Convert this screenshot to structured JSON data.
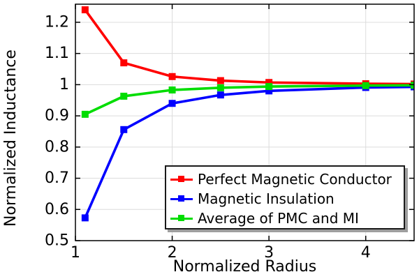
{
  "chart_data": {
    "type": "line",
    "title": "",
    "xlabel": "Normalized Radius",
    "ylabel": "Normalized Inductance",
    "xlim": [
      1,
      4.5
    ],
    "ylim": [
      0.5,
      1.258
    ],
    "x_ticks": [
      1,
      2,
      3,
      4
    ],
    "x_tick_labels": [
      "1",
      "2",
      "3",
      "4"
    ],
    "y_ticks": [
      0.5,
      0.6,
      0.7,
      0.8,
      0.9,
      1.0,
      1.1,
      1.2
    ],
    "y_tick_labels": [
      "0.5",
      "0.6",
      "0.7",
      "0.8",
      "0.9",
      "1",
      "1.1",
      "1.2"
    ],
    "grid": true,
    "legend_position": "inside lower right",
    "x": [
      1.1,
      1.5,
      2,
      2.5,
      3,
      4,
      4.5
    ],
    "series": [
      {
        "name": "Perfect Magnetic Conductor",
        "color": "#ff0000",
        "marker": "square",
        "values": [
          1.24,
          1.07,
          1.026,
          1.013,
          1.007,
          1.003,
          1.002
        ]
      },
      {
        "name": "Magnetic Insulation",
        "color": "#0000ff",
        "marker": "square",
        "values": [
          0.573,
          0.856,
          0.94,
          0.967,
          0.98,
          0.991,
          0.993
        ]
      },
      {
        "name": "Average of PMC and MI",
        "color": "#00dd00",
        "marker": "square",
        "values": [
          0.905,
          0.963,
          0.983,
          0.99,
          0.994,
          0.997,
          0.998
        ]
      }
    ],
    "colors": {
      "grid": "#dcdcdc",
      "axis": "#000000",
      "legend_shadow": "#9e9e9e",
      "background": "#ffffff"
    }
  }
}
